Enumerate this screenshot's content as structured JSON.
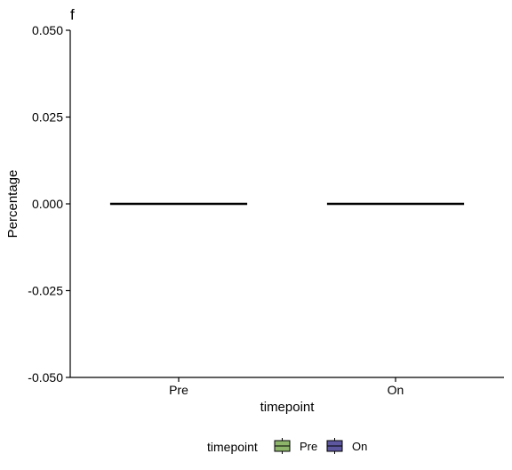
{
  "chart_data": {
    "type": "boxplot",
    "panel_tag": "f",
    "xlabel": "timepoint",
    "ylabel": "Percentage",
    "categories": [
      "Pre",
      "On"
    ],
    "ylim": [
      -0.05,
      0.05
    ],
    "yticks": [
      -0.05,
      -0.025,
      0.0,
      0.025,
      0.05
    ],
    "ytick_labels": [
      "-0.050",
      "-0.025",
      "0.000",
      "0.025",
      "0.050"
    ],
    "series": [
      {
        "category": "Pre",
        "min": 0.0,
        "q1": 0.0,
        "median": 0.0,
        "q3": 0.0,
        "max": 0.0,
        "color": "#8db66b"
      },
      {
        "category": "On",
        "min": 0.0,
        "q1": 0.0,
        "median": 0.0,
        "q3": 0.0,
        "max": 0.0,
        "color": "#5d57a0"
      }
    ],
    "legend": {
      "title": "timepoint",
      "position": "bottom",
      "items": [
        {
          "label": "Pre",
          "color": "#8db66b"
        },
        {
          "label": "On",
          "color": "#5d57a0"
        }
      ]
    },
    "grid": false
  }
}
